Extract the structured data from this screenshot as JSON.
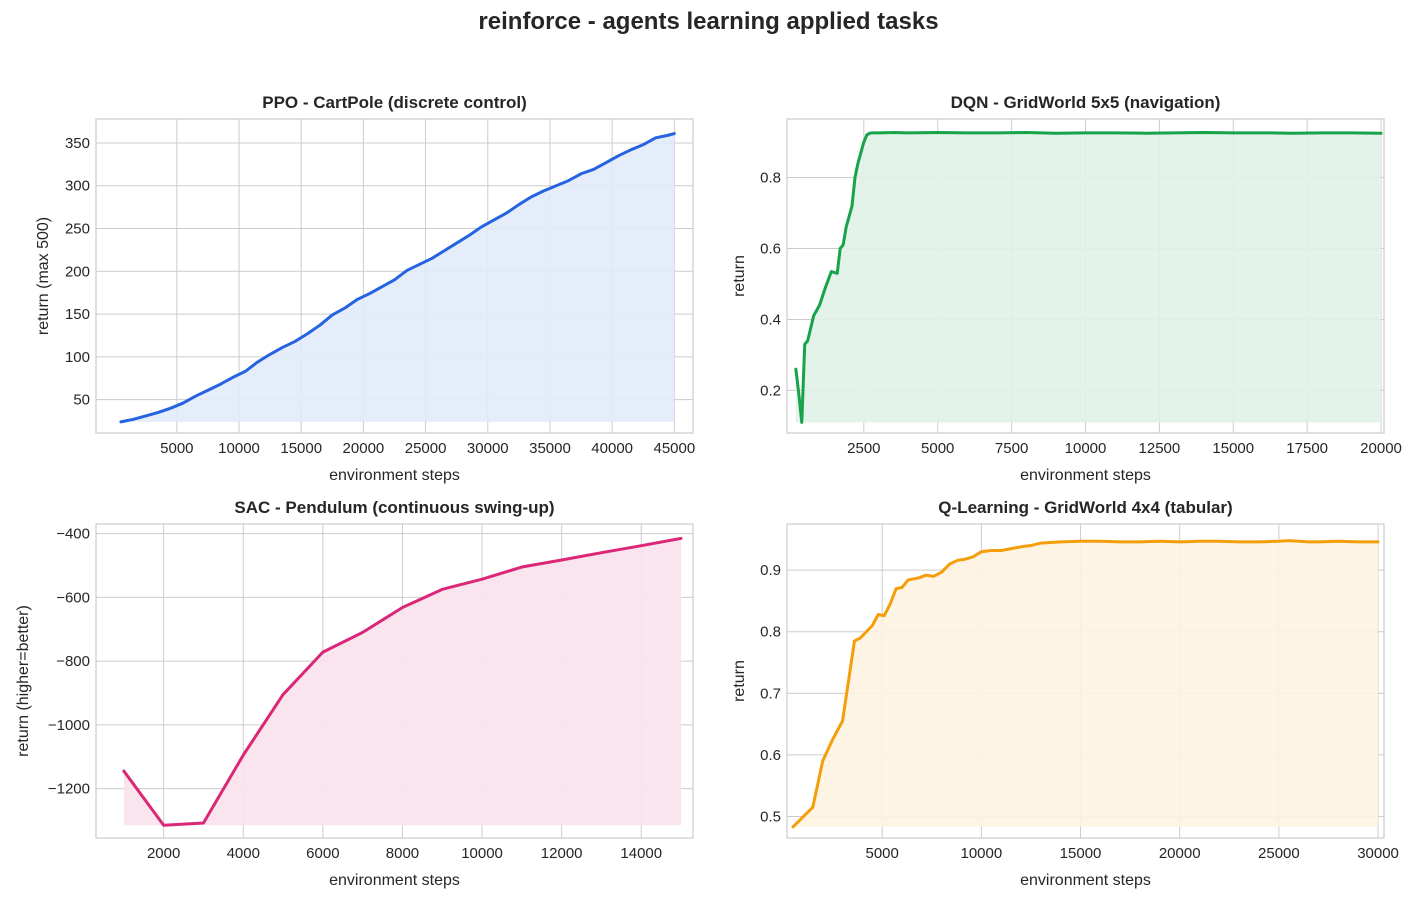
{
  "figure": {
    "suptitle": "reinforce - agents learning applied tasks"
  },
  "chart_data": [
    {
      "type": "area",
      "title": "PPO - CartPole (discrete control)",
      "xlabel": "environment steps",
      "ylabel": "return (max 500)",
      "color": "#2563e0",
      "fill": "#e2eaf9",
      "xlim": [
        -1500,
        46500
      ],
      "ylim": [
        11,
        378
      ],
      "xticks": [
        5000,
        10000,
        15000,
        20000,
        25000,
        30000,
        35000,
        40000,
        45000
      ],
      "yticks": [
        50,
        100,
        150,
        200,
        250,
        300,
        350
      ],
      "grid": true,
      "x": [
        500,
        1500,
        2500,
        3500,
        4500,
        5500,
        6500,
        7500,
        8500,
        9500,
        10500,
        11500,
        12500,
        13500,
        14500,
        15500,
        16500,
        17500,
        18500,
        19500,
        20500,
        21500,
        22500,
        23500,
        24500,
        25500,
        26500,
        27500,
        28500,
        29500,
        30500,
        31500,
        32500,
        33500,
        34500,
        35500,
        36500,
        37500,
        38500,
        39500,
        40500,
        41500,
        42500,
        43500,
        44500,
        45000
      ],
      "y": [
        24,
        27,
        31,
        35,
        40,
        46,
        54,
        61,
        68,
        76,
        83,
        94,
        103,
        111,
        118,
        127,
        137,
        149,
        157,
        167,
        174,
        182,
        190,
        201,
        208,
        215,
        224,
        233,
        242,
        252,
        260,
        268,
        278,
        287,
        294,
        300,
        306,
        314,
        319,
        327,
        335,
        342,
        348,
        356,
        359,
        361
      ]
    },
    {
      "type": "area",
      "title": "DQN - GridWorld 5x5 (navigation)",
      "xlabel": "environment steps",
      "ylabel": "return",
      "color": "#17a34a",
      "fill": "#e0f2e7",
      "xlim": [
        -100,
        20100
      ],
      "ylim": [
        0.08,
        0.965
      ],
      "xticks": [
        2500,
        5000,
        7500,
        10000,
        12500,
        15000,
        17500,
        20000
      ],
      "yticks": [
        0.2,
        0.4,
        0.6,
        0.8
      ],
      "grid": true,
      "x": [
        200,
        300,
        400,
        500,
        600,
        800,
        1000,
        1200,
        1400,
        1600,
        1700,
        1800,
        1900,
        2000,
        2100,
        2200,
        2300,
        2400,
        2500,
        2600,
        2700,
        2800,
        2900,
        3000,
        3500,
        4000,
        5000,
        6000,
        7000,
        8000,
        9000,
        10000,
        11000,
        12000,
        13000,
        14000,
        15000,
        16000,
        17000,
        18000,
        19000,
        20000
      ],
      "y": [
        0.26,
        0.19,
        0.11,
        0.33,
        0.34,
        0.41,
        0.44,
        0.49,
        0.535,
        0.53,
        0.6,
        0.61,
        0.66,
        0.69,
        0.72,
        0.8,
        0.84,
        0.87,
        0.9,
        0.92,
        0.925,
        0.926,
        0.926,
        0.926,
        0.927,
        0.926,
        0.927,
        0.926,
        0.926,
        0.927,
        0.925,
        0.926,
        0.926,
        0.925,
        0.926,
        0.927,
        0.926,
        0.926,
        0.925,
        0.926,
        0.926,
        0.925
      ]
    },
    {
      "type": "area",
      "title": "SAC - Pendulum (continuous swing-up)",
      "xlabel": "environment steps",
      "ylabel": "return (higher=better)",
      "color": "#db2777",
      "fill": "#f9e2ec",
      "xlim": [
        300,
        15300
      ],
      "ylim": [
        -1355,
        -370
      ],
      "xticks": [
        2000,
        4000,
        6000,
        8000,
        10000,
        12000,
        14000
      ],
      "yticks": [
        -1200,
        -1000,
        -800,
        -600,
        -400
      ],
      "grid": true,
      "x": [
        1000,
        2000,
        3000,
        4000,
        5000,
        6000,
        7000,
        8000,
        9000,
        10000,
        11000,
        12000,
        13000,
        14000,
        15000
      ],
      "y": [
        -1145,
        -1315,
        -1308,
        -1095,
        -905,
        -772,
        -710,
        -632,
        -575,
        -543,
        -505,
        -483,
        -460,
        -438,
        -415
      ]
    },
    {
      "type": "area",
      "title": "Q-Learning - GridWorld 4x4 (tabular)",
      "xlabel": "environment steps",
      "ylabel": "return",
      "color": "#f59e0b",
      "fill": "#fdf3e0",
      "xlim": [
        200,
        30300
      ],
      "ylim": [
        0.465,
        0.975
      ],
      "xticks": [
        5000,
        10000,
        15000,
        20000,
        25000,
        30000
      ],
      "yticks": [
        0.5,
        0.6,
        0.7,
        0.8,
        0.9
      ],
      "grid": true,
      "x": [
        500,
        1500,
        2000,
        2500,
        3000,
        3300,
        3600,
        3900,
        4200,
        4500,
        4800,
        5100,
        5400,
        5700,
        6000,
        6300,
        6600,
        6900,
        7200,
        7600,
        8000,
        8400,
        8800,
        9200,
        9600,
        10000,
        10500,
        11000,
        11500,
        12000,
        12500,
        13000,
        13500,
        14000,
        15000,
        16000,
        17000,
        18000,
        19000,
        20000,
        21000,
        22000,
        23000,
        24000,
        25000,
        25500,
        26000,
        26500,
        27000,
        28000,
        29000,
        30000
      ],
      "y": [
        0.483,
        0.515,
        0.59,
        0.625,
        0.655,
        0.72,
        0.785,
        0.79,
        0.8,
        0.81,
        0.828,
        0.826,
        0.845,
        0.87,
        0.872,
        0.884,
        0.886,
        0.888,
        0.892,
        0.89,
        0.897,
        0.91,
        0.916,
        0.918,
        0.922,
        0.93,
        0.932,
        0.932,
        0.935,
        0.938,
        0.94,
        0.944,
        0.945,
        0.946,
        0.947,
        0.947,
        0.946,
        0.946,
        0.947,
        0.946,
        0.947,
        0.947,
        0.946,
        0.946,
        0.947,
        0.948,
        0.947,
        0.946,
        0.946,
        0.947,
        0.946,
        0.946
      ]
    }
  ]
}
